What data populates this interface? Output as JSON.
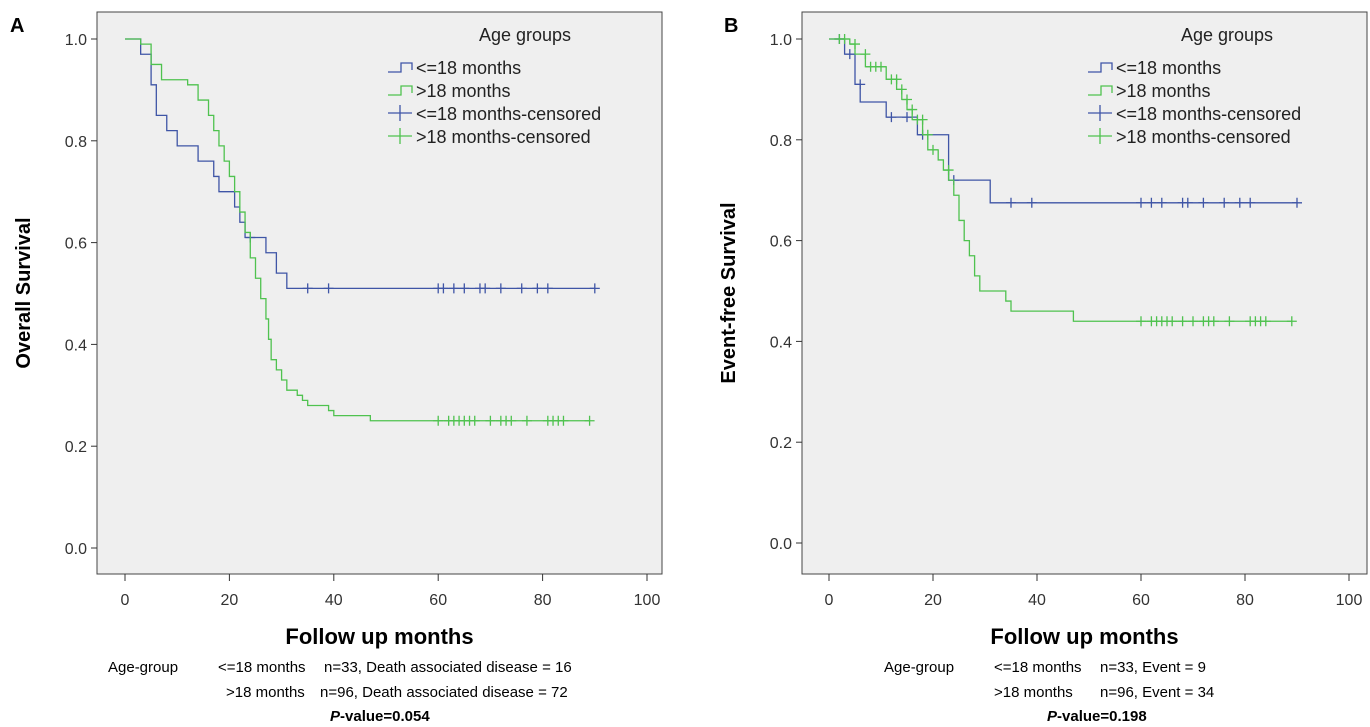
{
  "colors": {
    "le18": "#3f55a6",
    "gt18": "#4fc24f",
    "plot_bg": "#efefef"
  },
  "chart_data": [
    {
      "type": "line",
      "panel_label": "A",
      "xlabel": "Follow up months",
      "ylabel": "Overall Survival",
      "xlim": [
        0,
        100
      ],
      "ylim": [
        0,
        1
      ],
      "x_ticks": [
        0,
        20,
        40,
        60,
        80,
        100
      ],
      "x_tick_labels": [
        "0",
        "20",
        "40",
        "60",
        "80",
        "100"
      ],
      "y_ticks": [
        0,
        0.2,
        0.4,
        0.6,
        0.8,
        1.0
      ],
      "y_tick_labels": [
        "0.0",
        "0.2",
        "0.4",
        "0.6",
        "0.8",
        "1.0"
      ],
      "legend_title": "Age groups",
      "legend_position": "top-right",
      "legend": [
        {
          "label": "<=18 months",
          "series": "le18",
          "kind": "step"
        },
        {
          "label": ">18 months",
          "series": "gt18",
          "kind": "step"
        },
        {
          "label": "<=18 months-censored",
          "series": "le18",
          "kind": "cross"
        },
        {
          "label": ">18 months-censored",
          "series": "gt18",
          "kind": "cross"
        }
      ],
      "series": [
        {
          "key": "le18",
          "steps": [
            [
              0,
              1.0
            ],
            [
              3,
              0.97
            ],
            [
              5,
              0.91
            ],
            [
              6,
              0.85
            ],
            [
              8,
              0.82
            ],
            [
              10,
              0.79
            ],
            [
              14,
              0.76
            ],
            [
              17,
              0.73
            ],
            [
              18,
              0.7
            ],
            [
              21,
              0.67
            ],
            [
              22,
              0.64
            ],
            [
              23,
              0.61
            ],
            [
              27,
              0.58
            ],
            [
              29,
              0.54
            ],
            [
              31,
              0.51
            ],
            [
              90,
              0.51
            ]
          ],
          "censored": [
            [
              24,
              0.61
            ],
            [
              35,
              0.51
            ],
            [
              39,
              0.51
            ],
            [
              60,
              0.51
            ],
            [
              61,
              0.51
            ],
            [
              63,
              0.51
            ],
            [
              65,
              0.51
            ],
            [
              68,
              0.51
            ],
            [
              69,
              0.51
            ],
            [
              72,
              0.51
            ],
            [
              76,
              0.51
            ],
            [
              79,
              0.51
            ],
            [
              81,
              0.51
            ],
            [
              90,
              0.51
            ]
          ]
        },
        {
          "key": "gt18",
          "steps": [
            [
              0,
              1.0
            ],
            [
              3,
              0.99
            ],
            [
              5,
              0.95
            ],
            [
              7,
              0.92
            ],
            [
              12,
              0.91
            ],
            [
              14,
              0.88
            ],
            [
              16,
              0.85
            ],
            [
              17,
              0.82
            ],
            [
              18,
              0.79
            ],
            [
              19,
              0.76
            ],
            [
              20,
              0.73
            ],
            [
              21,
              0.7
            ],
            [
              22,
              0.66
            ],
            [
              23,
              0.62
            ],
            [
              24,
              0.57
            ],
            [
              25,
              0.53
            ],
            [
              26,
              0.49
            ],
            [
              27,
              0.45
            ],
            [
              27.5,
              0.41
            ],
            [
              28,
              0.37
            ],
            [
              29,
              0.35
            ],
            [
              30,
              0.33
            ],
            [
              31,
              0.31
            ],
            [
              33,
              0.3
            ],
            [
              34,
              0.29
            ],
            [
              35,
              0.28
            ],
            [
              39,
              0.27
            ],
            [
              40,
              0.26
            ],
            [
              47,
              0.25
            ],
            [
              89,
              0.25
            ]
          ],
          "censored": [
            [
              60,
              0.25
            ],
            [
              62,
              0.25
            ],
            [
              63,
              0.25
            ],
            [
              64,
              0.25
            ],
            [
              65,
              0.25
            ],
            [
              66,
              0.25
            ],
            [
              67,
              0.25
            ],
            [
              70,
              0.25
            ],
            [
              72,
              0.25
            ],
            [
              73,
              0.25
            ],
            [
              74,
              0.25
            ],
            [
              77,
              0.25
            ],
            [
              81,
              0.25
            ],
            [
              82,
              0.25
            ],
            [
              83,
              0.25
            ],
            [
              84,
              0.25
            ],
            [
              89,
              0.25
            ]
          ]
        }
      ],
      "footer": {
        "group_label": "Age-group",
        "row1_group": "<=18 months",
        "row1_stats": "n=33, Death associated disease = 16",
        "row2_group": ">18 months",
        "row2_stats": "n=96, Death associated disease = 72",
        "p_italic": "P",
        "p_rest": "-value=0.054"
      }
    },
    {
      "type": "line",
      "panel_label": "B",
      "xlabel": "Follow up months",
      "ylabel": "Event-free Survival",
      "xlim": [
        0,
        100
      ],
      "ylim": [
        0,
        1
      ],
      "x_ticks": [
        0,
        20,
        40,
        60,
        80,
        100
      ],
      "x_tick_labels": [
        "0",
        "20",
        "40",
        "60",
        "80",
        "100"
      ],
      "y_ticks": [
        0,
        0.2,
        0.4,
        0.6,
        0.8,
        1.0
      ],
      "y_tick_labels": [
        "0.0",
        "0.2",
        "0.4",
        "0.6",
        "0.8",
        "1.0"
      ],
      "legend_title": "Age groups",
      "legend_position": "top-right",
      "legend": [
        {
          "label": "<=18 months",
          "series": "le18",
          "kind": "step"
        },
        {
          "label": ">18 months",
          "series": "gt18",
          "kind": "step"
        },
        {
          "label": "<=18 months-censored",
          "series": "le18",
          "kind": "cross"
        },
        {
          "label": ">18 months-censored",
          "series": "gt18",
          "kind": "cross"
        }
      ],
      "series": [
        {
          "key": "le18",
          "steps": [
            [
              0,
              1.0
            ],
            [
              3,
              0.97
            ],
            [
              5,
              0.91
            ],
            [
              6,
              0.875
            ],
            [
              11,
              0.845
            ],
            [
              17,
              0.81
            ],
            [
              23,
              0.72
            ],
            [
              31,
              0.675
            ],
            [
              90,
              0.675
            ]
          ],
          "censored": [
            [
              2,
              1.0
            ],
            [
              4,
              0.97
            ],
            [
              6,
              0.91
            ],
            [
              12,
              0.845
            ],
            [
              15,
              0.845
            ],
            [
              18,
              0.81
            ],
            [
              24,
              0.72
            ],
            [
              35,
              0.675
            ],
            [
              39,
              0.675
            ],
            [
              60,
              0.675
            ],
            [
              62,
              0.675
            ],
            [
              64,
              0.675
            ],
            [
              68,
              0.675
            ],
            [
              69,
              0.675
            ],
            [
              72,
              0.675
            ],
            [
              76,
              0.675
            ],
            [
              79,
              0.675
            ],
            [
              81,
              0.675
            ],
            [
              90,
              0.675
            ]
          ]
        },
        {
          "key": "gt18",
          "steps": [
            [
              0,
              1.0
            ],
            [
              4,
              0.99
            ],
            [
              5,
              0.97
            ],
            [
              7,
              0.945
            ],
            [
              11,
              0.92
            ],
            [
              13,
              0.9
            ],
            [
              14,
              0.88
            ],
            [
              15,
              0.86
            ],
            [
              16,
              0.84
            ],
            [
              18,
              0.81
            ],
            [
              19,
              0.78
            ],
            [
              21,
              0.76
            ],
            [
              22,
              0.74
            ],
            [
              23,
              0.72
            ],
            [
              24,
              0.69
            ],
            [
              25,
              0.64
            ],
            [
              26,
              0.6
            ],
            [
              27,
              0.57
            ],
            [
              28,
              0.53
            ],
            [
              29,
              0.5
            ],
            [
              34,
              0.48
            ],
            [
              35,
              0.46
            ],
            [
              47,
              0.44
            ],
            [
              89,
              0.44
            ]
          ],
          "censored": [
            [
              2,
              1.0
            ],
            [
              3,
              1.0
            ],
            [
              5,
              0.99
            ],
            [
              7,
              0.97
            ],
            [
              8,
              0.945
            ],
            [
              9,
              0.945
            ],
            [
              10,
              0.945
            ],
            [
              12,
              0.92
            ],
            [
              13,
              0.92
            ],
            [
              14,
              0.9
            ],
            [
              15,
              0.88
            ],
            [
              16,
              0.86
            ],
            [
              17,
              0.84
            ],
            [
              18,
              0.84
            ],
            [
              19,
              0.81
            ],
            [
              20,
              0.78
            ],
            [
              23,
              0.74
            ],
            [
              60,
              0.44
            ],
            [
              62,
              0.44
            ],
            [
              63,
              0.44
            ],
            [
              64,
              0.44
            ],
            [
              65,
              0.44
            ],
            [
              66,
              0.44
            ],
            [
              68,
              0.44
            ],
            [
              70,
              0.44
            ],
            [
              72,
              0.44
            ],
            [
              73,
              0.44
            ],
            [
              74,
              0.44
            ],
            [
              77,
              0.44
            ],
            [
              81,
              0.44
            ],
            [
              82,
              0.44
            ],
            [
              83,
              0.44
            ],
            [
              84,
              0.44
            ],
            [
              89,
              0.44
            ]
          ]
        }
      ],
      "footer": {
        "group_label": "Age-group",
        "row1_group": "<=18 months",
        "row1_stats": "n=33, Event = 9",
        "row2_group": ">18 months",
        "row2_stats": "n=96, Event = 34",
        "p_italic": "P",
        "p_rest": "-value=0.198"
      }
    }
  ]
}
